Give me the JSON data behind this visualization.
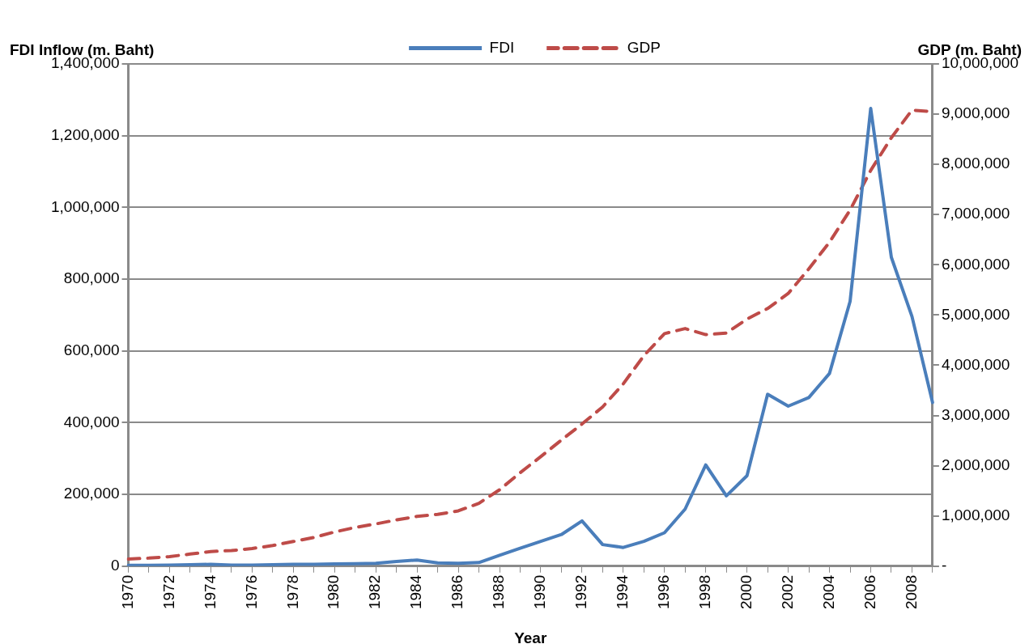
{
  "chart_data": {
    "type": "line",
    "xlabel": "Year",
    "ylabel": "FDI Inflow (m. Baht)",
    "y2label": "GDP (m. Baht)",
    "categories": [
      "1970",
      null,
      "1972",
      null,
      "1974",
      null,
      "1976",
      null,
      "1978",
      null,
      "1980",
      null,
      "1982",
      null,
      "1984",
      null,
      "1986",
      null,
      "1988",
      null,
      "1990",
      null,
      "1992",
      null,
      "1994",
      null,
      "1996",
      null,
      "1998",
      null,
      "2000",
      null,
      "2002",
      null,
      "2004",
      null,
      "2006",
      null,
      "2008",
      null
    ],
    "series": [
      {
        "name": "FDI",
        "color": "#4a7ebb",
        "line_style": "solid",
        "values": [
          2000,
          2000,
          3000,
          4000,
          5000,
          3000,
          3000,
          4000,
          5000,
          5000,
          6000,
          7000,
          8000,
          13000,
          17000,
          9000,
          8000,
          10000,
          30000,
          50000,
          69000,
          88000,
          126000,
          60000,
          52000,
          69000,
          93000,
          159000,
          282000,
          196000,
          252000,
          479000,
          446000,
          470000,
          537000,
          738000,
          1276000,
          861000,
          696000,
          456000
        ]
      },
      {
        "name": "GDP",
        "color": "#be4b48",
        "line_style": "dashed",
        "axis": "y2",
        "values": [
          140000,
          160000,
          190000,
          240000,
          290000,
          310000,
          350000,
          410000,
          490000,
          570000,
          680000,
          770000,
          840000,
          920000,
          990000,
          1030000,
          1100000,
          1250000,
          1520000,
          1860000,
          2180000,
          2510000,
          2830000,
          3170000,
          3630000,
          4190000,
          4630000,
          4730000,
          4610000,
          4640000,
          4920000,
          5130000,
          5430000,
          5920000,
          6450000,
          7090000,
          7880000,
          8530000,
          9080000,
          9050000
        ]
      }
    ],
    "ylim": [
      0,
      1400000
    ],
    "yticks": [
      0,
      {
        "value": 200000,
        "label": "200,000"
      },
      {
        "value": 400000,
        "label": "400,000"
      },
      {
        "value": 600000,
        "label": "600,000"
      },
      {
        "value": 800000,
        "label": "800,000"
      },
      {
        "value": 1000000,
        "label": "1,000,000"
      },
      {
        "value": 1200000,
        "label": "1,200,000"
      },
      {
        "value": 1400000,
        "label": "1,400,000"
      }
    ],
    "y2lim": [
      0,
      10000000
    ],
    "y2ticks": [
      {
        "value": 0,
        "label": "-"
      },
      {
        "value": 1000000,
        "label": "1,000,000"
      },
      {
        "value": 2000000,
        "label": "2,000,000"
      },
      {
        "value": 3000000,
        "label": "3,000,000"
      },
      {
        "value": 4000000,
        "label": "4,000,000"
      },
      {
        "value": 5000000,
        "label": "5,000,000"
      },
      {
        "value": 6000000,
        "label": "6,000,000"
      },
      {
        "value": 7000000,
        "label": "7,000,000"
      },
      {
        "value": 8000000,
        "label": "8,000,000"
      },
      {
        "value": 9000000,
        "label": "9,000,000"
      },
      {
        "value": 10000000,
        "label": "10,000,000"
      }
    ],
    "grid": "y",
    "legend": "top",
    "marker": "none"
  }
}
